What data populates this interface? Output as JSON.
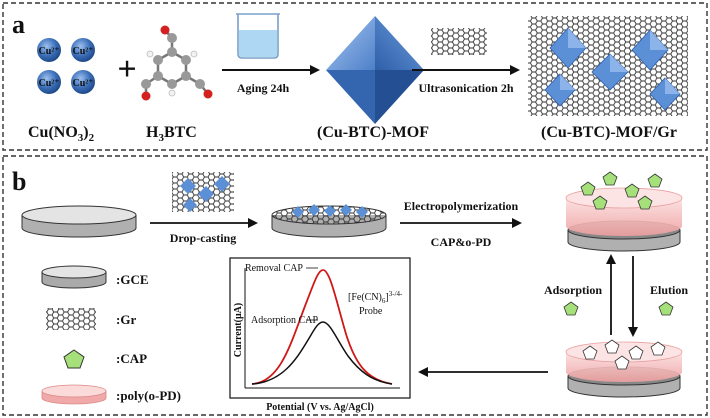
{
  "panel_a": {
    "letter": "a",
    "cu_ion": "Cu²⁺",
    "plus": "+",
    "step1": "Aging 24h",
    "step2": "Ultrasonication 2h",
    "labels": {
      "cu_salt": "Cu(NO3)2",
      "ligand": "H3BTC",
      "mof": "(Cu-BTC)-MOF",
      "composite": "(Cu-BTC)-MOF/Gr"
    }
  },
  "panel_b": {
    "letter": "b",
    "step_dropcast": "Drop-casting",
    "step_electropoly": "Electropolymerization",
    "step_monomers": "CAP&o-PD",
    "step_adsorption": "Adsorption",
    "step_elution": "Elution",
    "legend": [
      {
        "label": ":GCE"
      },
      {
        "label": ":Gr"
      },
      {
        "label": ":CAP"
      },
      {
        "label": ":poly(o-PD)"
      }
    ],
    "plot": {
      "ylabel": "Current(μA)",
      "xlabel": "Potential  (V vs. Ag/AgCl)",
      "removal_label": "Removal CAP",
      "adsorption_label": "Adsorption CAP",
      "probe_label": "[Fe(CN)6]3-/4-",
      "probe_word": "Probe"
    }
  },
  "colors": {
    "dashed_border": "#333333",
    "cu_blue": "#3c6fb8",
    "mof_blue": "#5b8fd6",
    "graphene": "#333333",
    "cap_green": "#a6e07a",
    "poly_pink": "#f4b8b8",
    "red_curve": "#d01818",
    "black_curve": "#000000"
  }
}
